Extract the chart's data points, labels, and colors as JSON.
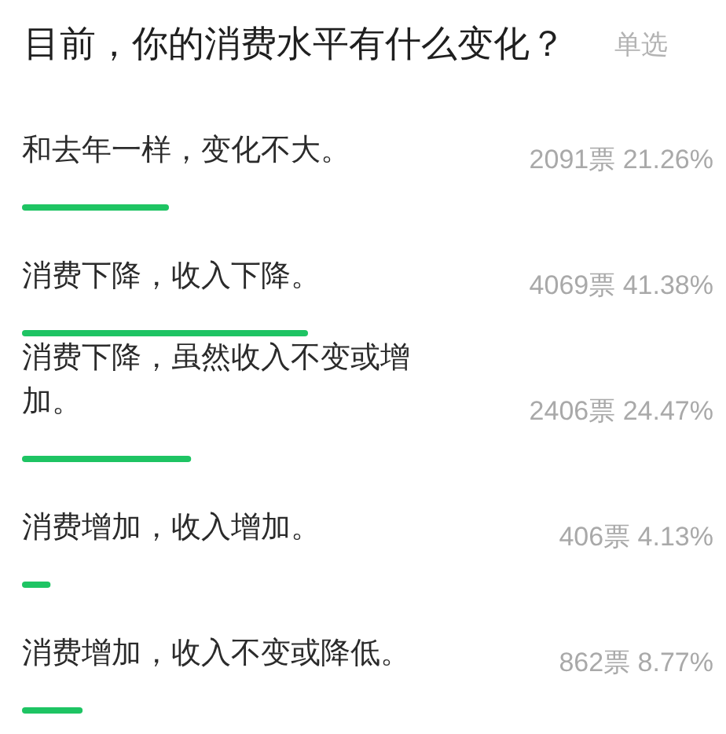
{
  "chart_data": {
    "type": "bar",
    "orientation": "horizontal",
    "title": "目前，你的消费水平有什么变化？",
    "subtitle": "单选",
    "categories": [
      "和去年一样，变化不大。",
      "消费下降，收入下降。",
      "消费下降，虽然收入不变或增加。",
      "消费增加，收入增加。",
      "消费增加，收入不变或降低。"
    ],
    "values": [
      21.26,
      41.38,
      24.47,
      4.13,
      8.77
    ],
    "value_labels": [
      "2091票 21.26%",
      "4069票 41.38%",
      "2406票 24.47%",
      "406票 4.13%",
      "862票 8.77%"
    ],
    "color": "#1ec463",
    "tick_labels": "y"
  }
}
